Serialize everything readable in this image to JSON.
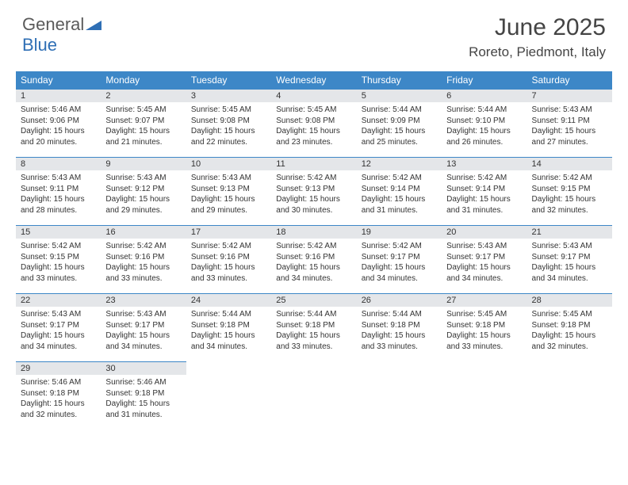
{
  "logo": {
    "word1": "General",
    "word2": "Blue"
  },
  "title": "June 2025",
  "location": "Roreto, Piedmont, Italy",
  "colors": {
    "header_bg": "#3d87c7",
    "header_text": "#ffffff",
    "daynum_bg": "#e4e6e9",
    "daynum_border": "#3d87c7",
    "body_text": "#333333",
    "logo_gray": "#5a5a5a",
    "logo_blue": "#2f6fb5",
    "page_bg": "#ffffff"
  },
  "typography": {
    "title_fontsize": 30,
    "location_fontsize": 17,
    "dayheader_fontsize": 12,
    "daynum_fontsize": 11,
    "body_fontsize": 10
  },
  "day_headers": [
    "Sunday",
    "Monday",
    "Tuesday",
    "Wednesday",
    "Thursday",
    "Friday",
    "Saturday"
  ],
  "weeks": [
    [
      {
        "n": "1",
        "sr": "5:46 AM",
        "ss": "9:06 PM",
        "dl": "15 hours and 20 minutes."
      },
      {
        "n": "2",
        "sr": "5:45 AM",
        "ss": "9:07 PM",
        "dl": "15 hours and 21 minutes."
      },
      {
        "n": "3",
        "sr": "5:45 AM",
        "ss": "9:08 PM",
        "dl": "15 hours and 22 minutes."
      },
      {
        "n": "4",
        "sr": "5:45 AM",
        "ss": "9:08 PM",
        "dl": "15 hours and 23 minutes."
      },
      {
        "n": "5",
        "sr": "5:44 AM",
        "ss": "9:09 PM",
        "dl": "15 hours and 25 minutes."
      },
      {
        "n": "6",
        "sr": "5:44 AM",
        "ss": "9:10 PM",
        "dl": "15 hours and 26 minutes."
      },
      {
        "n": "7",
        "sr": "5:43 AM",
        "ss": "9:11 PM",
        "dl": "15 hours and 27 minutes."
      }
    ],
    [
      {
        "n": "8",
        "sr": "5:43 AM",
        "ss": "9:11 PM",
        "dl": "15 hours and 28 minutes."
      },
      {
        "n": "9",
        "sr": "5:43 AM",
        "ss": "9:12 PM",
        "dl": "15 hours and 29 minutes."
      },
      {
        "n": "10",
        "sr": "5:43 AM",
        "ss": "9:13 PM",
        "dl": "15 hours and 29 minutes."
      },
      {
        "n": "11",
        "sr": "5:42 AM",
        "ss": "9:13 PM",
        "dl": "15 hours and 30 minutes."
      },
      {
        "n": "12",
        "sr": "5:42 AM",
        "ss": "9:14 PM",
        "dl": "15 hours and 31 minutes."
      },
      {
        "n": "13",
        "sr": "5:42 AM",
        "ss": "9:14 PM",
        "dl": "15 hours and 31 minutes."
      },
      {
        "n": "14",
        "sr": "5:42 AM",
        "ss": "9:15 PM",
        "dl": "15 hours and 32 minutes."
      }
    ],
    [
      {
        "n": "15",
        "sr": "5:42 AM",
        "ss": "9:15 PM",
        "dl": "15 hours and 33 minutes."
      },
      {
        "n": "16",
        "sr": "5:42 AM",
        "ss": "9:16 PM",
        "dl": "15 hours and 33 minutes."
      },
      {
        "n": "17",
        "sr": "5:42 AM",
        "ss": "9:16 PM",
        "dl": "15 hours and 33 minutes."
      },
      {
        "n": "18",
        "sr": "5:42 AM",
        "ss": "9:16 PM",
        "dl": "15 hours and 34 minutes."
      },
      {
        "n": "19",
        "sr": "5:42 AM",
        "ss": "9:17 PM",
        "dl": "15 hours and 34 minutes."
      },
      {
        "n": "20",
        "sr": "5:43 AM",
        "ss": "9:17 PM",
        "dl": "15 hours and 34 minutes."
      },
      {
        "n": "21",
        "sr": "5:43 AM",
        "ss": "9:17 PM",
        "dl": "15 hours and 34 minutes."
      }
    ],
    [
      {
        "n": "22",
        "sr": "5:43 AM",
        "ss": "9:17 PM",
        "dl": "15 hours and 34 minutes."
      },
      {
        "n": "23",
        "sr": "5:43 AM",
        "ss": "9:17 PM",
        "dl": "15 hours and 34 minutes."
      },
      {
        "n": "24",
        "sr": "5:44 AM",
        "ss": "9:18 PM",
        "dl": "15 hours and 34 minutes."
      },
      {
        "n": "25",
        "sr": "5:44 AM",
        "ss": "9:18 PM",
        "dl": "15 hours and 33 minutes."
      },
      {
        "n": "26",
        "sr": "5:44 AM",
        "ss": "9:18 PM",
        "dl": "15 hours and 33 minutes."
      },
      {
        "n": "27",
        "sr": "5:45 AM",
        "ss": "9:18 PM",
        "dl": "15 hours and 33 minutes."
      },
      {
        "n": "28",
        "sr": "5:45 AM",
        "ss": "9:18 PM",
        "dl": "15 hours and 32 minutes."
      }
    ],
    [
      {
        "n": "29",
        "sr": "5:46 AM",
        "ss": "9:18 PM",
        "dl": "15 hours and 32 minutes."
      },
      {
        "n": "30",
        "sr": "5:46 AM",
        "ss": "9:18 PM",
        "dl": "15 hours and 31 minutes."
      },
      null,
      null,
      null,
      null,
      null
    ]
  ],
  "labels": {
    "sunrise": "Sunrise:",
    "sunset": "Sunset:",
    "daylight": "Daylight:"
  }
}
